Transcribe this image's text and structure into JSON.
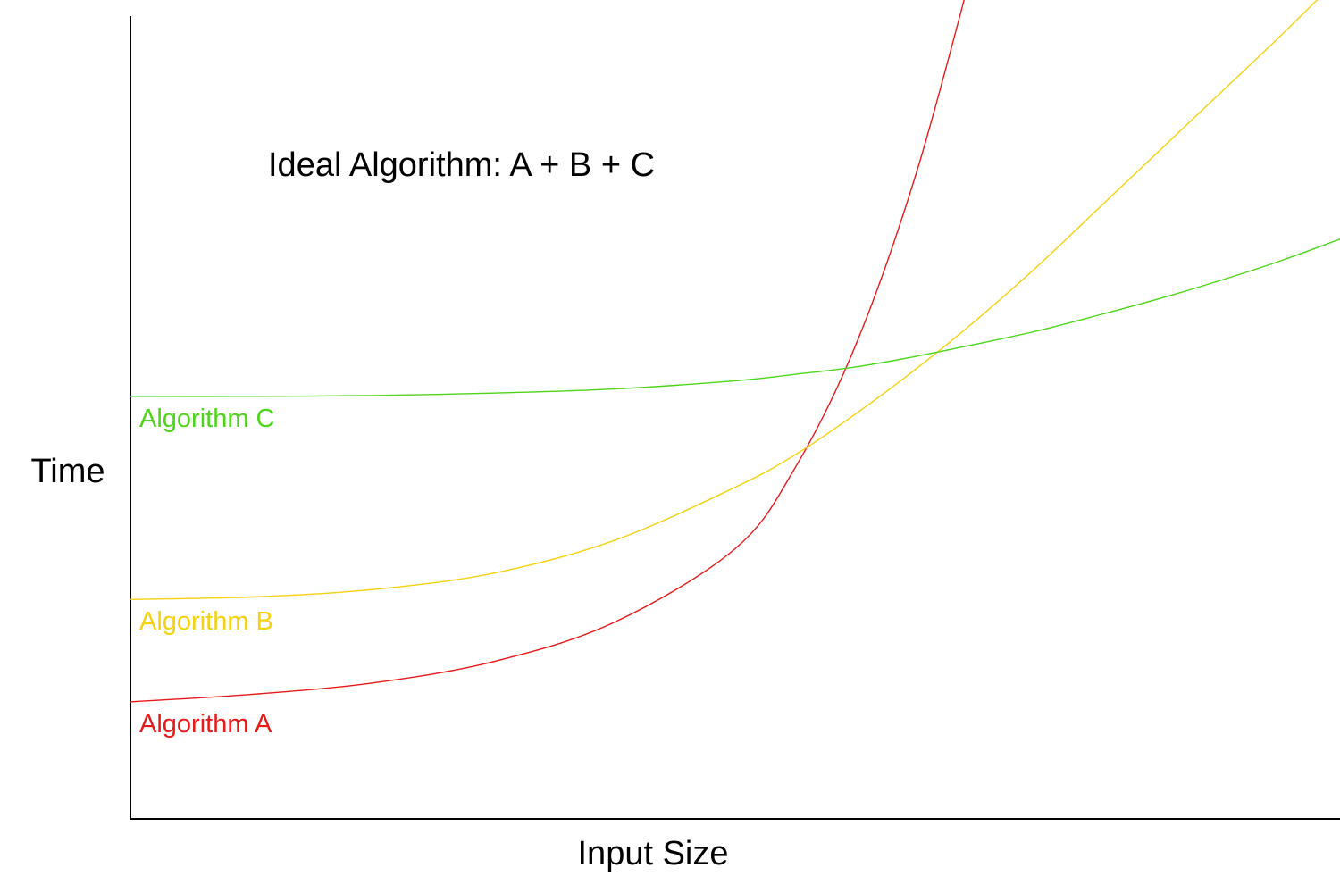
{
  "chart_data": {
    "type": "line",
    "title": "",
    "xlabel": "Input Size",
    "ylabel": "Time",
    "xlim": [
      0,
      10
    ],
    "ylim": [
      0,
      10
    ],
    "grid": false,
    "legend": "none",
    "annotations": [
      {
        "text": "Ideal Algorithm: A + B + C"
      }
    ],
    "x": [
      0,
      1,
      2,
      3,
      4,
      5,
      5.5,
      6,
      6.5,
      7,
      7.5,
      8,
      8.5,
      9,
      9.5,
      10
    ],
    "series": [
      {
        "name": "Algorithm A",
        "color": "#e8191a",
        "values": [
          1.43,
          1.52,
          1.66,
          1.92,
          2.4,
          3.3,
          4.3,
          5.8,
          7.9,
          10.6,
          null,
          null,
          null,
          null,
          null,
          null
        ]
      },
      {
        "name": "Algorithm B",
        "color": "#f5d10f",
        "values": [
          2.68,
          2.71,
          2.8,
          3.0,
          3.4,
          4.05,
          4.45,
          4.95,
          5.5,
          6.1,
          6.75,
          7.45,
          8.15,
          8.85,
          9.55,
          10.28
        ]
      },
      {
        "name": "Algorithm C",
        "color": "#4dd51a",
        "values": [
          5.16,
          5.16,
          5.17,
          5.2,
          5.25,
          5.35,
          5.43,
          5.52,
          5.65,
          5.8,
          5.96,
          6.15,
          6.35,
          6.57,
          6.81,
          7.08
        ]
      }
    ]
  }
}
